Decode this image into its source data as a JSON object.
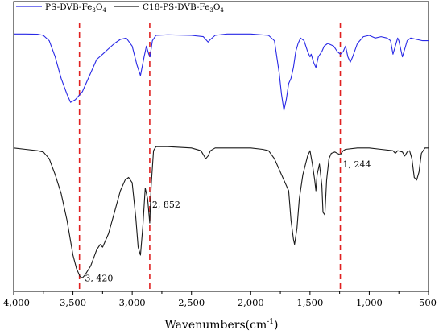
{
  "chart_data": {
    "type": "line",
    "xlabel": "Wavenumbers(cm",
    "xlabel_sup": "-1",
    "xlabel_close": ")",
    "x_reversed": true,
    "xlim": [
      4000,
      500
    ],
    "ylim": [
      0,
      1
    ],
    "y_axis_shown": false,
    "grid": false,
    "legend_position": "top-left",
    "x_ticks": [
      {
        "value": 4000,
        "label": "4,000"
      },
      {
        "value": 3500,
        "label": "3,500"
      },
      {
        "value": 3000,
        "label": "3,000"
      },
      {
        "value": 2500,
        "label": "2,500"
      },
      {
        "value": 2000,
        "label": "2,000"
      },
      {
        "value": 1500,
        "label": "1,500"
      },
      {
        "value": 1000,
        "label": "1,000"
      },
      {
        "value": 500,
        "label": "500"
      }
    ],
    "series": [
      {
        "name": "PS-DVB-Fe3O4",
        "legend_parts": [
          "PS-DVB-Fe",
          "3",
          "O",
          "4"
        ],
        "color": "#2929e6",
        "points": [
          [
            4000,
            0.945
          ],
          [
            3900,
            0.945
          ],
          [
            3800,
            0.944
          ],
          [
            3750,
            0.94
          ],
          [
            3700,
            0.92
          ],
          [
            3650,
            0.86
          ],
          [
            3600,
            0.78
          ],
          [
            3550,
            0.72
          ],
          [
            3520,
            0.69
          ],
          [
            3480,
            0.7
          ],
          [
            3420,
            0.73
          ],
          [
            3350,
            0.8
          ],
          [
            3300,
            0.85
          ],
          [
            3250,
            0.87
          ],
          [
            3200,
            0.89
          ],
          [
            3150,
            0.91
          ],
          [
            3100,
            0.925
          ],
          [
            3050,
            0.93
          ],
          [
            3000,
            0.9
          ],
          [
            2960,
            0.83
          ],
          [
            2930,
            0.79
          ],
          [
            2900,
            0.86
          ],
          [
            2880,
            0.9
          ],
          [
            2860,
            0.87
          ],
          [
            2850,
            0.86
          ],
          [
            2830,
            0.92
          ],
          [
            2800,
            0.94
          ],
          [
            2700,
            0.942
          ],
          [
            2500,
            0.94
          ],
          [
            2400,
            0.935
          ],
          [
            2360,
            0.915
          ],
          [
            2340,
            0.925
          ],
          [
            2300,
            0.94
          ],
          [
            2200,
            0.945
          ],
          [
            2000,
            0.945
          ],
          [
            1850,
            0.94
          ],
          [
            1800,
            0.92
          ],
          [
            1760,
            0.8
          ],
          [
            1740,
            0.72
          ],
          [
            1720,
            0.66
          ],
          [
            1700,
            0.7
          ],
          [
            1680,
            0.76
          ],
          [
            1660,
            0.78
          ],
          [
            1640,
            0.82
          ],
          [
            1620,
            0.88
          ],
          [
            1600,
            0.91
          ],
          [
            1580,
            0.93
          ],
          [
            1550,
            0.92
          ],
          [
            1520,
            0.88
          ],
          [
            1500,
            0.86
          ],
          [
            1490,
            0.87
          ],
          [
            1470,
            0.84
          ],
          [
            1450,
            0.82
          ],
          [
            1430,
            0.86
          ],
          [
            1400,
            0.88
          ],
          [
            1380,
            0.9
          ],
          [
            1350,
            0.91
          ],
          [
            1300,
            0.9
          ],
          [
            1270,
            0.88
          ],
          [
            1244,
            0.87
          ],
          [
            1220,
            0.88
          ],
          [
            1200,
            0.9
          ],
          [
            1180,
            0.86
          ],
          [
            1160,
            0.84
          ],
          [
            1140,
            0.86
          ],
          [
            1100,
            0.91
          ],
          [
            1050,
            0.935
          ],
          [
            1000,
            0.94
          ],
          [
            950,
            0.93
          ],
          [
            900,
            0.935
          ],
          [
            850,
            0.93
          ],
          [
            820,
            0.92
          ],
          [
            800,
            0.87
          ],
          [
            780,
            0.9
          ],
          [
            760,
            0.93
          ],
          [
            750,
            0.92
          ],
          [
            720,
            0.86
          ],
          [
            700,
            0.89
          ],
          [
            680,
            0.92
          ],
          [
            650,
            0.93
          ],
          [
            600,
            0.925
          ],
          [
            550,
            0.92
          ],
          [
            500,
            0.92
          ]
        ]
      },
      {
        "name": "C18-PS-DVB-Fe3O4",
        "legend_parts": [
          "C18-PS-DVB-Fe",
          "3",
          "O",
          "4"
        ],
        "color": "#1a1a1a",
        "points": [
          [
            4000,
            0.52
          ],
          [
            3900,
            0.515
          ],
          [
            3800,
            0.51
          ],
          [
            3750,
            0.505
          ],
          [
            3700,
            0.48
          ],
          [
            3650,
            0.42
          ],
          [
            3600,
            0.35
          ],
          [
            3550,
            0.25
          ],
          [
            3500,
            0.12
          ],
          [
            3470,
            0.07
          ],
          [
            3440,
            0.04
          ],
          [
            3420,
            0.035
          ],
          [
            3400,
            0.045
          ],
          [
            3350,
            0.08
          ],
          [
            3300,
            0.14
          ],
          [
            3270,
            0.16
          ],
          [
            3250,
            0.15
          ],
          [
            3200,
            0.2
          ],
          [
            3150,
            0.28
          ],
          [
            3100,
            0.36
          ],
          [
            3060,
            0.4
          ],
          [
            3030,
            0.41
          ],
          [
            3000,
            0.39
          ],
          [
            2970,
            0.26
          ],
          [
            2950,
            0.15
          ],
          [
            2930,
            0.12
          ],
          [
            2910,
            0.23
          ],
          [
            2890,
            0.37
          ],
          [
            2870,
            0.33
          ],
          [
            2852,
            0.24
          ],
          [
            2840,
            0.38
          ],
          [
            2820,
            0.51
          ],
          [
            2800,
            0.525
          ],
          [
            2700,
            0.525
          ],
          [
            2500,
            0.52
          ],
          [
            2420,
            0.51
          ],
          [
            2380,
            0.48
          ],
          [
            2360,
            0.49
          ],
          [
            2340,
            0.51
          ],
          [
            2300,
            0.52
          ],
          [
            2100,
            0.52
          ],
          [
            2000,
            0.52
          ],
          [
            1900,
            0.515
          ],
          [
            1850,
            0.51
          ],
          [
            1800,
            0.48
          ],
          [
            1760,
            0.44
          ],
          [
            1720,
            0.4
          ],
          [
            1680,
            0.36
          ],
          [
            1660,
            0.25
          ],
          [
            1640,
            0.18
          ],
          [
            1630,
            0.16
          ],
          [
            1610,
            0.22
          ],
          [
            1590,
            0.33
          ],
          [
            1560,
            0.42
          ],
          [
            1520,
            0.49
          ],
          [
            1500,
            0.51
          ],
          [
            1480,
            0.46
          ],
          [
            1460,
            0.4
          ],
          [
            1450,
            0.36
          ],
          [
            1440,
            0.42
          ],
          [
            1420,
            0.46
          ],
          [
            1400,
            0.38
          ],
          [
            1390,
            0.28
          ],
          [
            1375,
            0.27
          ],
          [
            1360,
            0.4
          ],
          [
            1340,
            0.48
          ],
          [
            1320,
            0.5
          ],
          [
            1290,
            0.505
          ],
          [
            1270,
            0.5
          ],
          [
            1244,
            0.495
          ],
          [
            1220,
            0.51
          ],
          [
            1200,
            0.515
          ],
          [
            1100,
            0.52
          ],
          [
            1000,
            0.52
          ],
          [
            900,
            0.515
          ],
          [
            800,
            0.51
          ],
          [
            780,
            0.5
          ],
          [
            760,
            0.51
          ],
          [
            720,
            0.505
          ],
          [
            700,
            0.49
          ],
          [
            680,
            0.505
          ],
          [
            660,
            0.51
          ],
          [
            640,
            0.48
          ],
          [
            620,
            0.41
          ],
          [
            600,
            0.4
          ],
          [
            580,
            0.43
          ],
          [
            560,
            0.5
          ],
          [
            530,
            0.52
          ],
          [
            500,
            0.52
          ]
        ]
      }
    ],
    "reference_lines": [
      {
        "x": 3445,
        "color": "#e02020",
        "style": "dashed"
      },
      {
        "x": 2852,
        "color": "#e02020",
        "style": "dashed"
      },
      {
        "x": 1244,
        "color": "#e02020",
        "style": "dashed"
      }
    ],
    "annotations": [
      {
        "text": "3, 420",
        "x": 3420,
        "y": 0.035,
        "align": "right"
      },
      {
        "text": "2, 852",
        "x": 2852,
        "y": 0.31,
        "align": "right"
      },
      {
        "text": "1, 244",
        "x": 1244,
        "y": 0.46,
        "align": "right"
      }
    ]
  }
}
